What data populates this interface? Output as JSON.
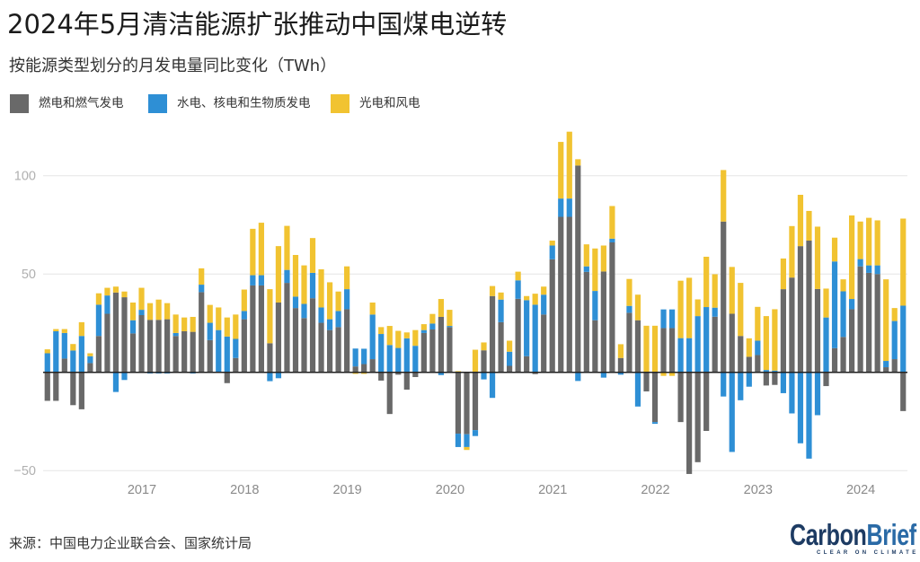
{
  "header": {
    "title": "2024年5月清洁能源扩张推动中国煤电逆转",
    "subtitle": "按能源类型划分的月发电量同比变化（TWh）"
  },
  "legend": [
    {
      "label": "燃电和燃气发电",
      "color": "#696969"
    },
    {
      "label": "水电、核电和生物质发电",
      "color": "#2e8fd5"
    },
    {
      "label": "光电和风电",
      "color": "#f1c331"
    }
  ],
  "footer": {
    "source": "来源：中国电力企业联合会、国家统计局"
  },
  "logo": {
    "name_part1": "Carbon",
    "name_part2": "Brief",
    "tagline": "CLEAR ON CLIMATE"
  },
  "chart_data": {
    "type": "bar",
    "stacked": true,
    "title": "2024年5月清洁能源扩张推动中国煤电逆转",
    "subtitle": "按能源类型划分的月发电量同比变化（TWh）",
    "xlabel": "",
    "ylabel": "TWh",
    "ylim": [
      -52,
      125
    ],
    "y_ticks": [
      100,
      50,
      -50
    ],
    "y_tick_labels": [
      "100",
      "50",
      "−50"
    ],
    "x_tick_labels": [
      "2017",
      "2018",
      "2019",
      "2020",
      "2021",
      "2022",
      "2023",
      "2024"
    ],
    "grid": true,
    "legend_position": "top-left",
    "x": [
      "2016-01",
      "2016-02",
      "2016-03",
      "2016-04",
      "2016-05",
      "2016-06",
      "2016-07",
      "2016-08",
      "2016-09",
      "2016-10",
      "2016-11",
      "2016-12",
      "2017-01",
      "2017-02",
      "2017-03",
      "2017-04",
      "2017-05",
      "2017-06",
      "2017-07",
      "2017-08",
      "2017-09",
      "2017-10",
      "2017-11",
      "2017-12",
      "2018-01",
      "2018-02",
      "2018-03",
      "2018-04",
      "2018-05",
      "2018-06",
      "2018-07",
      "2018-08",
      "2018-09",
      "2018-10",
      "2018-11",
      "2018-12",
      "2019-01",
      "2019-02",
      "2019-03",
      "2019-04",
      "2019-05",
      "2019-06",
      "2019-07",
      "2019-08",
      "2019-09",
      "2019-10",
      "2019-11",
      "2019-12",
      "2020-01",
      "2020-02",
      "2020-03",
      "2020-04",
      "2020-05",
      "2020-06",
      "2020-07",
      "2020-08",
      "2020-09",
      "2020-10",
      "2020-11",
      "2020-12",
      "2021-01",
      "2021-02",
      "2021-03",
      "2021-04",
      "2021-05",
      "2021-06",
      "2021-07",
      "2021-08",
      "2021-09",
      "2021-10",
      "2021-11",
      "2021-12",
      "2022-01",
      "2022-02",
      "2022-03",
      "2022-04",
      "2022-05",
      "2022-06",
      "2022-07",
      "2022-08",
      "2022-09",
      "2022-10",
      "2022-11",
      "2022-12",
      "2023-01",
      "2023-02",
      "2023-03",
      "2023-04",
      "2023-05",
      "2023-06",
      "2023-07",
      "2023-08",
      "2023-09",
      "2023-10",
      "2023-11",
      "2023-12",
      "2024-01",
      "2024-02",
      "2024-03",
      "2024-04",
      "2024-05"
    ],
    "series": [
      {
        "name": "燃电和燃气发电",
        "values": [
          -14.5,
          -14.5,
          7.0,
          -16.7,
          -18.8,
          4.7,
          18.5,
          29.8,
          40.6,
          38.2,
          19.8,
          29.1,
          26.7,
          26.7,
          27.0,
          18.5,
          20.9,
          20.6,
          40.8,
          16.4,
          0,
          -5.5,
          7.3,
          27.0,
          44.2,
          44.2,
          14.8,
          35.5,
          45.5,
          32.7,
          27.6,
          37.7,
          25.2,
          21.5,
          23.0,
          32.1,
          3.0,
          4.2,
          6.7,
          -4.2,
          -21.2,
          -1.2,
          -8.8,
          -2.4,
          20.0,
          21.8,
          28.2,
          23.0,
          -31.2,
          -31.5,
          -29.4,
          11.2,
          38.8,
          25.5,
          3.3,
          37.4,
          8.2,
          -0.9,
          29.4,
          57.5,
          79.1,
          79.1,
          105.2,
          51.1,
          26.5,
          51.3,
          66.1,
          7.3,
          30.3,
          26.5,
          -9.7,
          -25.3,
          22.5,
          22.5,
          -25.3,
          -51.7,
          -45.7,
          -29.8,
          28.3,
          76.7,
          29.8,
          18.5,
          7.9,
          8.8,
          -6.7,
          -6.4,
          42.3,
          48.2,
          64.2,
          67.0,
          42.4,
          -7.0,
          12.3,
          18.0,
          32.1,
          53.9,
          50.6,
          50.0,
          2.6,
          6.7,
          -19.7
        ]
      },
      {
        "name": "水电、核电和生物质发电",
        "values": [
          9.7,
          20.9,
          13.0,
          11.1,
          18.5,
          3.5,
          15.9,
          9.3,
          -10.0,
          -3.9,
          6.7,
          2.7,
          -0.6,
          -0.6,
          -0.6,
          1.5,
          0,
          -0.6,
          3.8,
          8.8,
          21.5,
          18.2,
          9.7,
          4.2,
          5.2,
          5.2,
          -4.5,
          -3.0,
          6.6,
          5.8,
          7.2,
          12.9,
          7.8,
          5.5,
          8.2,
          10.2,
          9.1,
          7.8,
          22.7,
          19.5,
          13.9,
          12.4,
          17.3,
          13.5,
          1.5,
          3.0,
          -1.4,
          0.6,
          -6.8,
          -6.5,
          -3.0,
          -3.6,
          -13.0,
          11.5,
          7.2,
          9.4,
          28.5,
          34.4,
          10.1,
          7.0,
          9.3,
          9.3,
          -4.4,
          2.8,
          14.9,
          -2.7,
          1.9,
          -1.2,
          3.5,
          -17.4,
          0,
          -0.9,
          9.5,
          9.5,
          17.4,
          17.4,
          28.6,
          33.2,
          4.6,
          -12.3,
          -40.5,
          -14.2,
          -7.3,
          7.3,
          1.2,
          0.9,
          -10.6,
          -20.9,
          -36.1,
          -43.9,
          -21.8,
          27.9,
          44.1,
          23.2,
          5.2,
          3.7,
          3.8,
          4.4,
          3.2,
          19.4,
          33.9
        ]
      },
      {
        "name": "光电和风电",
        "values": [
          2.0,
          1.1,
          2.0,
          3.3,
          7.0,
          1.5,
          5.8,
          3.9,
          3.0,
          2.9,
          9.0,
          11.2,
          8.5,
          10.3,
          8.2,
          9.4,
          7.0,
          7.6,
          8.3,
          9.1,
          11.5,
          9.7,
          12.4,
          10.9,
          23.6,
          26.7,
          27.5,
          28.7,
          22.4,
          21.2,
          19.6,
          17.7,
          19.4,
          18.8,
          9.9,
          11.6,
          -0.8,
          -0.8,
          6.1,
          3.5,
          9.7,
          8.7,
          3.0,
          8.0,
          3.0,
          4.9,
          9.1,
          8.2,
          0.6,
          -1.5,
          11.5,
          4.0,
          5.1,
          3.6,
          5.6,
          4.4,
          2.1,
          5.6,
          4.1,
          2.5,
          28.8,
          34.0,
          3.2,
          11.2,
          21.6,
          13.2,
          16.6,
          7.0,
          13.7,
          13.0,
          23.7,
          23.7,
          -1.8,
          -1.8,
          29.2,
          30.7,
          8.5,
          25.6,
          17.0,
          26.2,
          23.8,
          27.0,
          9.4,
          17.2,
          27.4,
          31.2,
          15.6,
          26.2,
          26.1,
          15.1,
          31.7,
          14.7,
          12.1,
          6.1,
          42.5,
          19.1,
          24.2,
          22.9,
          41.5,
          6.6,
          44.3
        ]
      }
    ]
  }
}
